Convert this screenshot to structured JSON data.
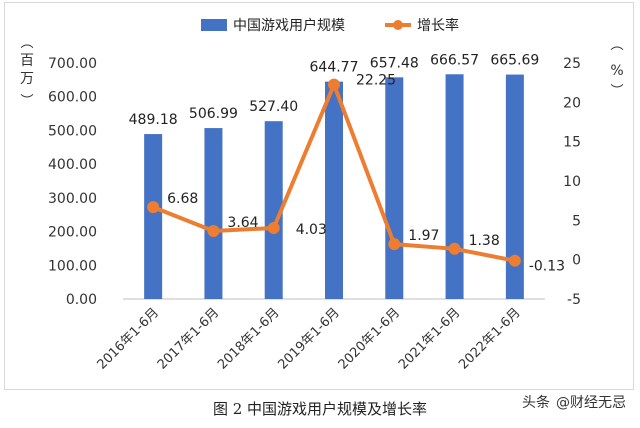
{
  "chart_data": {
    "type": "bar+line",
    "categories": [
      "2016年1-6月",
      "2017年1-6月",
      "2018年1-6月",
      "2019年1-6月",
      "2020年1-6月",
      "2021年1-6月",
      "2022年1-6月"
    ],
    "series": [
      {
        "name": "中国游戏用户规模",
        "type": "bar",
        "axis": "left",
        "color": "#4472C4",
        "values": [
          489.18,
          506.99,
          527.4,
          644.77,
          657.48,
          666.57,
          665.69
        ],
        "labels": [
          "489.18",
          "506.99",
          "527.40",
          "644.77",
          "657.48",
          "666.57",
          "665.69"
        ]
      },
      {
        "name": "增长率",
        "type": "line",
        "axis": "right",
        "color": "#ED7D31",
        "values": [
          6.68,
          3.64,
          4.03,
          22.25,
          1.97,
          1.38,
          -0.13
        ],
        "labels": [
          "6.68",
          "3.64",
          "4.03",
          "22.25",
          "1.97",
          "1.38",
          "-0.13"
        ]
      }
    ],
    "y_left": {
      "label": "百万",
      "range": [
        0,
        700
      ],
      "ticks": [
        "0.00",
        "100.00",
        "200.00",
        "300.00",
        "400.00",
        "500.00",
        "600.00",
        "700.00"
      ]
    },
    "y_right": {
      "label": "%",
      "range": [
        -5,
        25
      ],
      "ticks": [
        "-5",
        "0",
        "5",
        "10",
        "15",
        "20",
        "25"
      ]
    },
    "legend_position": "top",
    "grid": false
  },
  "caption": "图 2  中国游戏用户规模及增长率",
  "watermark": {
    "source": "头条",
    "handle": "@财经无忌"
  }
}
